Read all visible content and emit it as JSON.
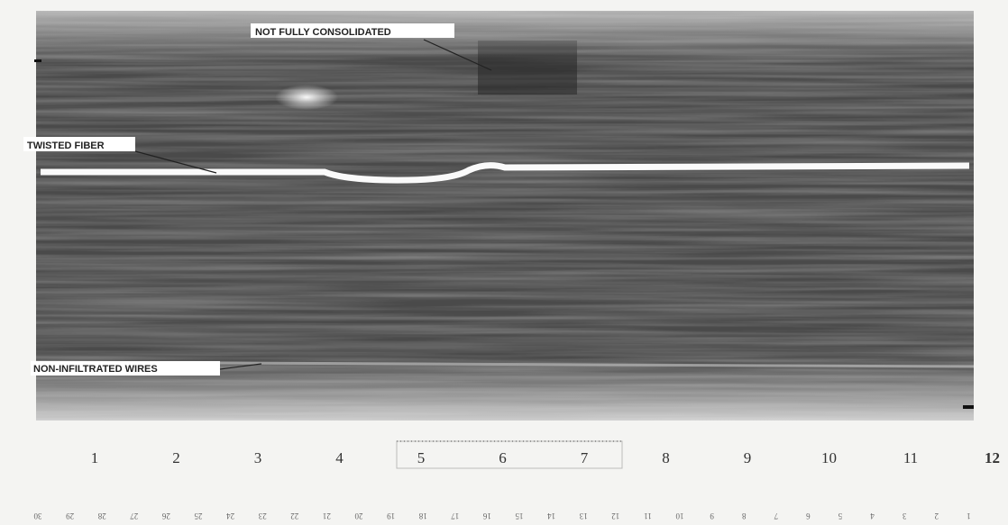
{
  "annotations": [
    "NOT FULLY CONSOLIDATED",
    "TWISTED FIBER",
    "NON-INFILTRATED WIRES"
  ],
  "scale": {
    "top": [
      "1",
      "2",
      "3",
      "4",
      "5",
      "6",
      "7",
      "8",
      "9",
      "10",
      "11",
      "12"
    ],
    "bottom": [
      "30",
      "29",
      "28",
      "27",
      "26",
      "25",
      "24",
      "23",
      "22",
      "21",
      "20",
      "19",
      "18",
      "17",
      "16",
      "15",
      "14",
      "13",
      "12",
      "11",
      "10",
      "9",
      "8",
      "7",
      "6",
      "5",
      "4",
      "3",
      "2",
      "1"
    ]
  }
}
